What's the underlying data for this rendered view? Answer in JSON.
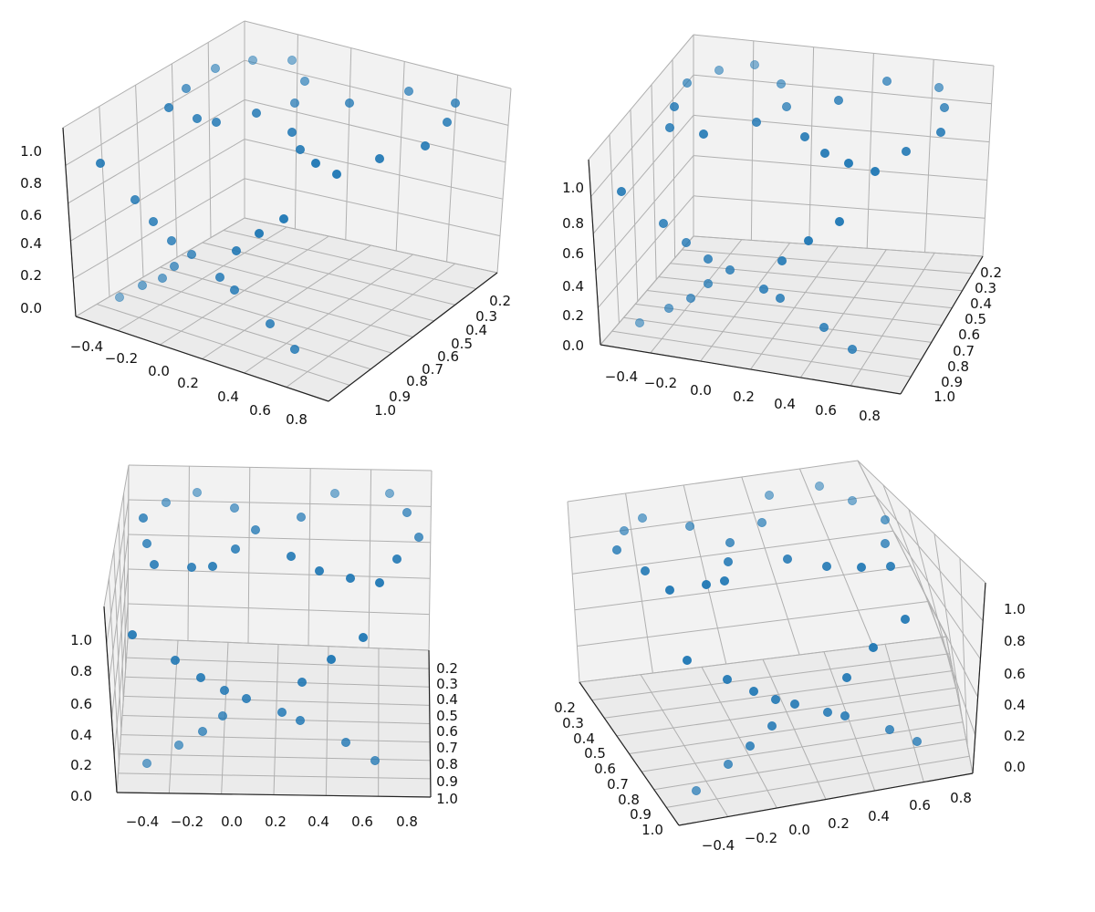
{
  "chart_data": [
    {
      "type": "scatter3d",
      "title": "",
      "xlabel": "",
      "ylabel": "",
      "zlabel": "",
      "x_ticks": [
        "−0.4",
        "−0.2",
        "0.0",
        "0.2",
        "0.4",
        "0.6",
        "0.8"
      ],
      "y_ticks": [
        "0.2",
        "0.3",
        "0.4",
        "0.5",
        "0.6",
        "0.7",
        "0.8",
        "0.9",
        "1.0"
      ],
      "z_ticks": [
        "0.0",
        "0.2",
        "0.4",
        "0.6",
        "0.8",
        "1.0"
      ],
      "view": "standard",
      "grid": true,
      "marker_color": "#1f77b4"
    },
    {
      "type": "scatter3d",
      "title": "",
      "xlabel": "",
      "ylabel": "",
      "zlabel": "",
      "x_ticks": [
        "−0.4",
        "−0.2",
        "0.0",
        "0.2",
        "0.4",
        "0.6",
        "0.8"
      ],
      "y_ticks": [
        "0.2",
        "0.3",
        "0.4",
        "0.5",
        "0.6",
        "0.7",
        "0.8",
        "0.9",
        "1.0"
      ],
      "z_ticks": [
        "0.0",
        "0.2",
        "0.4",
        "0.6",
        "0.8",
        "1.0"
      ],
      "view": "low-elevation",
      "grid": true,
      "marker_color": "#1f77b4"
    },
    {
      "type": "scatter3d",
      "title": "",
      "xlabel": "",
      "ylabel": "",
      "zlabel": "",
      "x_ticks": [
        "−0.4",
        "−0.2",
        "0.0",
        "0.2",
        "0.4",
        "0.6",
        "0.8"
      ],
      "y_ticks": [
        "0.2",
        "0.3",
        "0.4",
        "0.5",
        "0.6",
        "0.7",
        "0.8",
        "0.9",
        "1.0"
      ],
      "z_ticks": [
        "0.0",
        "0.2",
        "0.4",
        "0.6",
        "0.8",
        "1.0"
      ],
      "view": "side",
      "grid": true,
      "marker_color": "#1f77b4"
    },
    {
      "type": "scatter3d",
      "title": "",
      "xlabel": "",
      "ylabel": "",
      "zlabel": "",
      "x_ticks": [
        "−0.4",
        "−0.2",
        "0.0",
        "0.2",
        "0.4",
        "0.6",
        "0.8"
      ],
      "y_ticks": [
        "0.2",
        "0.3",
        "0.4",
        "0.5",
        "0.6",
        "0.7",
        "0.8",
        "0.9",
        "1.0"
      ],
      "z_ticks": [
        "0.0",
        "0.2",
        "0.4",
        "0.6",
        "0.8",
        "1.0"
      ],
      "view": "rotated",
      "grid": true,
      "marker_color": "#1f77b4"
    }
  ]
}
